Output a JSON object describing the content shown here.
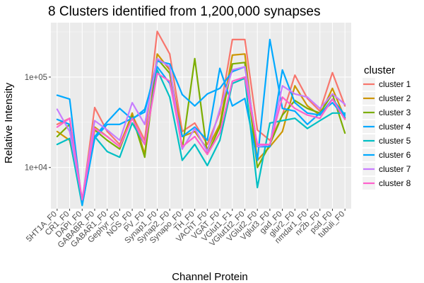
{
  "chart_data": {
    "type": "line",
    "title": "8 Clusters identified from 1,200,000 synapses",
    "xlabel": "Channel Protein",
    "ylabel": "Relative Intensity",
    "y_scale": "log10",
    "ylim": [
      3500,
      400000
    ],
    "y_ticks": [
      {
        "value": 10000,
        "label": "1e+04"
      },
      {
        "value": 100000,
        "label": "1e+05"
      }
    ],
    "grid": true,
    "legend_placement": "right",
    "legend_title": "cluster",
    "categories": [
      "5HT1A_F0",
      "CR1_F0",
      "DAPI_F0",
      "GABABR_F0",
      "GABAR1_F0",
      "Gephyr_F0",
      "NOS_F0",
      "PV_F0",
      "Synap1_F0",
      "Synap2_F0",
      "Synapo_F0",
      "TH_F0",
      "VAChT_F0",
      "VGAT_F0",
      "VGlut1_F1",
      "VGlut1t2_F0",
      "VGlut2_F0",
      "Vglut3_F0",
      "gad_F0",
      "glur2_F0",
      "nmdar1_F0",
      "nr2b_F0",
      "psd_F0",
      "tubuli_F0"
    ],
    "series": [
      {
        "name": "cluster 1",
        "color": "#F8766D",
        "values": [
          30000,
          35000,
          4200,
          46000,
          25000,
          18000,
          38000,
          20000,
          320000,
          180000,
          25000,
          31000,
          18000,
          40000,
          260000,
          260000,
          26000,
          20000,
          38000,
          105000,
          58000,
          42000,
          112000,
          48000
        ]
      },
      {
        "name": "cluster 2",
        "color": "#CD9600",
        "values": [
          25000,
          20000,
          4300,
          28000,
          22000,
          17000,
          40000,
          14000,
          180000,
          120000,
          22000,
          25000,
          16000,
          30000,
          175000,
          180000,
          12000,
          17000,
          25000,
          80000,
          48000,
          38000,
          75000,
          35000
        ]
      },
      {
        "name": "cluster 3",
        "color": "#7CAE00",
        "values": [
          22000,
          30000,
          4100,
          26000,
          20000,
          16000,
          37000,
          13000,
          160000,
          110000,
          16000,
          160000,
          14000,
          28000,
          140000,
          145000,
          10000,
          18000,
          38000,
          55000,
          45000,
          40000,
          65000,
          24000
        ]
      },
      {
        "name": "cluster 4",
        "color": "#00A9FF",
        "values": [
          34000,
          30000,
          4200,
          22000,
          32000,
          45000,
          34000,
          44000,
          130000,
          85000,
          22000,
          28000,
          20000,
          125000,
          48000,
          58000,
          12000,
          260000,
          45000,
          42000,
          30000,
          40000,
          52000,
          36000
        ]
      },
      {
        "name": "cluster 5",
        "color": "#00BFC4",
        "values": [
          18000,
          21000,
          3800,
          22000,
          15000,
          13000,
          31000,
          18000,
          120000,
          60000,
          12000,
          18000,
          10500,
          20000,
          85000,
          97000,
          6000,
          31000,
          33000,
          35000,
          27000,
          33000,
          40000,
          40000
        ]
      },
      {
        "name": "cluster 6",
        "color": "#00A9FF",
        "values": [
          63000,
          57000,
          3850,
          21000,
          30000,
          30000,
          35000,
          41000,
          150000,
          140000,
          64000,
          48000,
          65000,
          75000,
          115000,
          130000,
          17000,
          17000,
          120000,
          52000,
          40000,
          38000,
          57000,
          38000
        ]
      },
      {
        "name": "cluster 7",
        "color": "#C77CFF",
        "values": [
          44000,
          25000,
          4500,
          33000,
          26000,
          20000,
          52000,
          30000,
          160000,
          130000,
          16000,
          27000,
          15000,
          44000,
          120000,
          130000,
          17000,
          18000,
          80000,
          65000,
          60000,
          45000,
          65000,
          50000
        ]
      },
      {
        "name": "cluster 8",
        "color": "#FF61CC",
        "values": [
          28000,
          35000,
          4400,
          27000,
          22000,
          17000,
          35000,
          18000,
          110000,
          90000,
          17000,
          22000,
          14000,
          24000,
          90000,
          100000,
          18000,
          18000,
          60000,
          45000,
          38000,
          35000,
          57000,
          34000
        ]
      }
    ]
  }
}
